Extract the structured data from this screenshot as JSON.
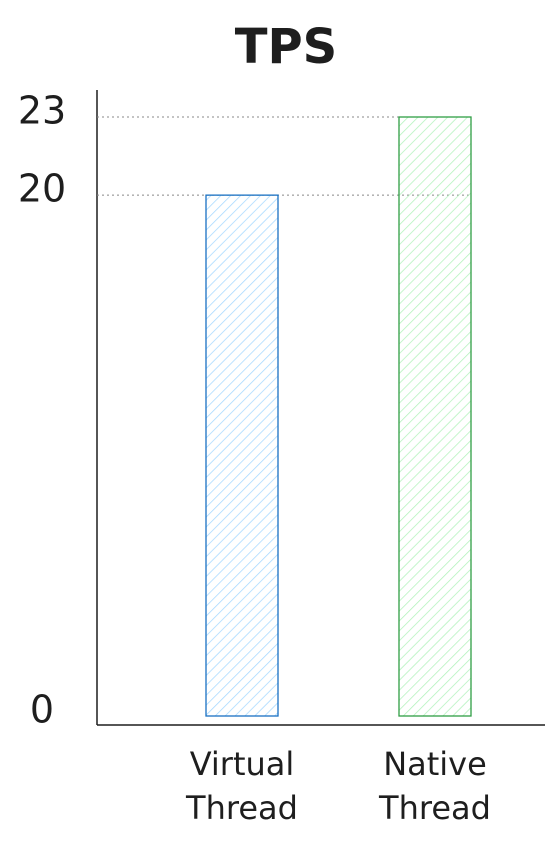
{
  "chart_data": {
    "type": "bar",
    "title": "TPS",
    "categories": [
      "Virtual Thread",
      "Native Thread"
    ],
    "values": [
      20,
      23
    ],
    "colors": [
      "#1971c2",
      "#2f9e44"
    ],
    "ylim": [
      0,
      23
    ],
    "yticks": [
      0,
      20,
      23
    ],
    "grid": true
  }
}
